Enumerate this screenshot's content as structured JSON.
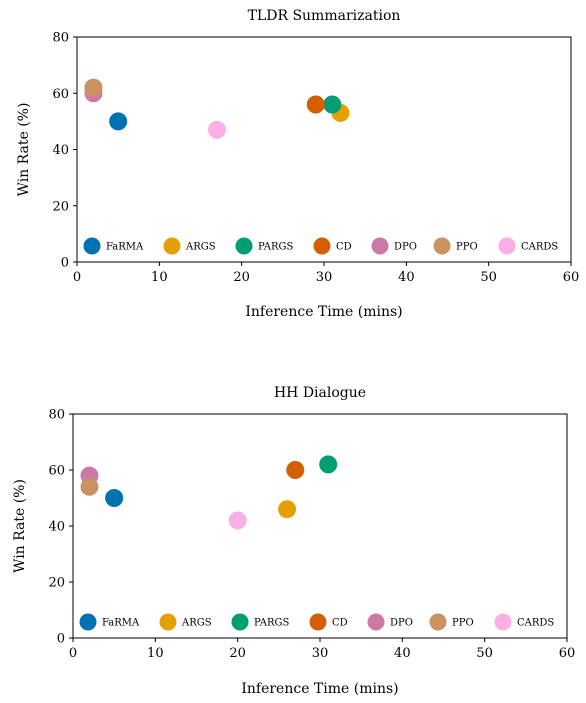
{
  "chart_data": [
    {
      "type": "scatter",
      "title": "TLDR Summarization",
      "xlabel": "Inference Time (mins)",
      "ylabel": "Win Rate (%)",
      "xlim": [
        0,
        60
      ],
      "ylim": [
        0,
        80
      ],
      "xticks": [
        "0",
        "10",
        "20",
        "30",
        "40",
        "50",
        "60"
      ],
      "yticks": [
        "0",
        "20",
        "40",
        "60",
        "80"
      ],
      "grid": false,
      "legend_placement": "bottom",
      "series": [
        {
          "name": "FaRMA",
          "color": "#0072b2",
          "x": [
            5
          ],
          "y": [
            50
          ]
        },
        {
          "name": "ARGS",
          "color": "#e69f00",
          "x": [
            32
          ],
          "y": [
            53
          ]
        },
        {
          "name": "PARGS",
          "color": "#009e73",
          "x": [
            31
          ],
          "y": [
            56
          ]
        },
        {
          "name": "CD",
          "color": "#d55e00",
          "x": [
            29
          ],
          "y": [
            56
          ]
        },
        {
          "name": "DPO",
          "color": "#cc79a7",
          "x": [
            2
          ],
          "y": [
            60
          ]
        },
        {
          "name": "PPO",
          "color": "#ca9161",
          "x": [
            2
          ],
          "y": [
            62
          ]
        },
        {
          "name": "CARDS",
          "color": "#fbafe4",
          "x": [
            17
          ],
          "y": [
            47
          ]
        }
      ]
    },
    {
      "type": "scatter",
      "title": "HH Dialogue",
      "xlabel": "Inference Time (mins)",
      "ylabel": "Win Rate (%)",
      "xlim": [
        0,
        60
      ],
      "ylim": [
        0,
        80
      ],
      "xticks": [
        "0",
        "10",
        "20",
        "30",
        "40",
        "50",
        "60"
      ],
      "yticks": [
        "0",
        "20",
        "40",
        "60",
        "80"
      ],
      "grid": false,
      "legend_placement": "bottom",
      "series": [
        {
          "name": "FaRMA",
          "color": "#0072b2",
          "x": [
            5
          ],
          "y": [
            50
          ]
        },
        {
          "name": "ARGS",
          "color": "#e69f00",
          "x": [
            26
          ],
          "y": [
            46
          ]
        },
        {
          "name": "PARGS",
          "color": "#009e73",
          "x": [
            31
          ],
          "y": [
            62
          ]
        },
        {
          "name": "CD",
          "color": "#d55e00",
          "x": [
            27
          ],
          "y": [
            60
          ]
        },
        {
          "name": "DPO",
          "color": "#cc79a7",
          "x": [
            2
          ],
          "y": [
            58
          ]
        },
        {
          "name": "PPO",
          "color": "#ca9161",
          "x": [
            2
          ],
          "y": [
            54
          ]
        },
        {
          "name": "CARDS",
          "color": "#fbafe4",
          "x": [
            20
          ],
          "y": [
            42
          ]
        }
      ]
    }
  ]
}
